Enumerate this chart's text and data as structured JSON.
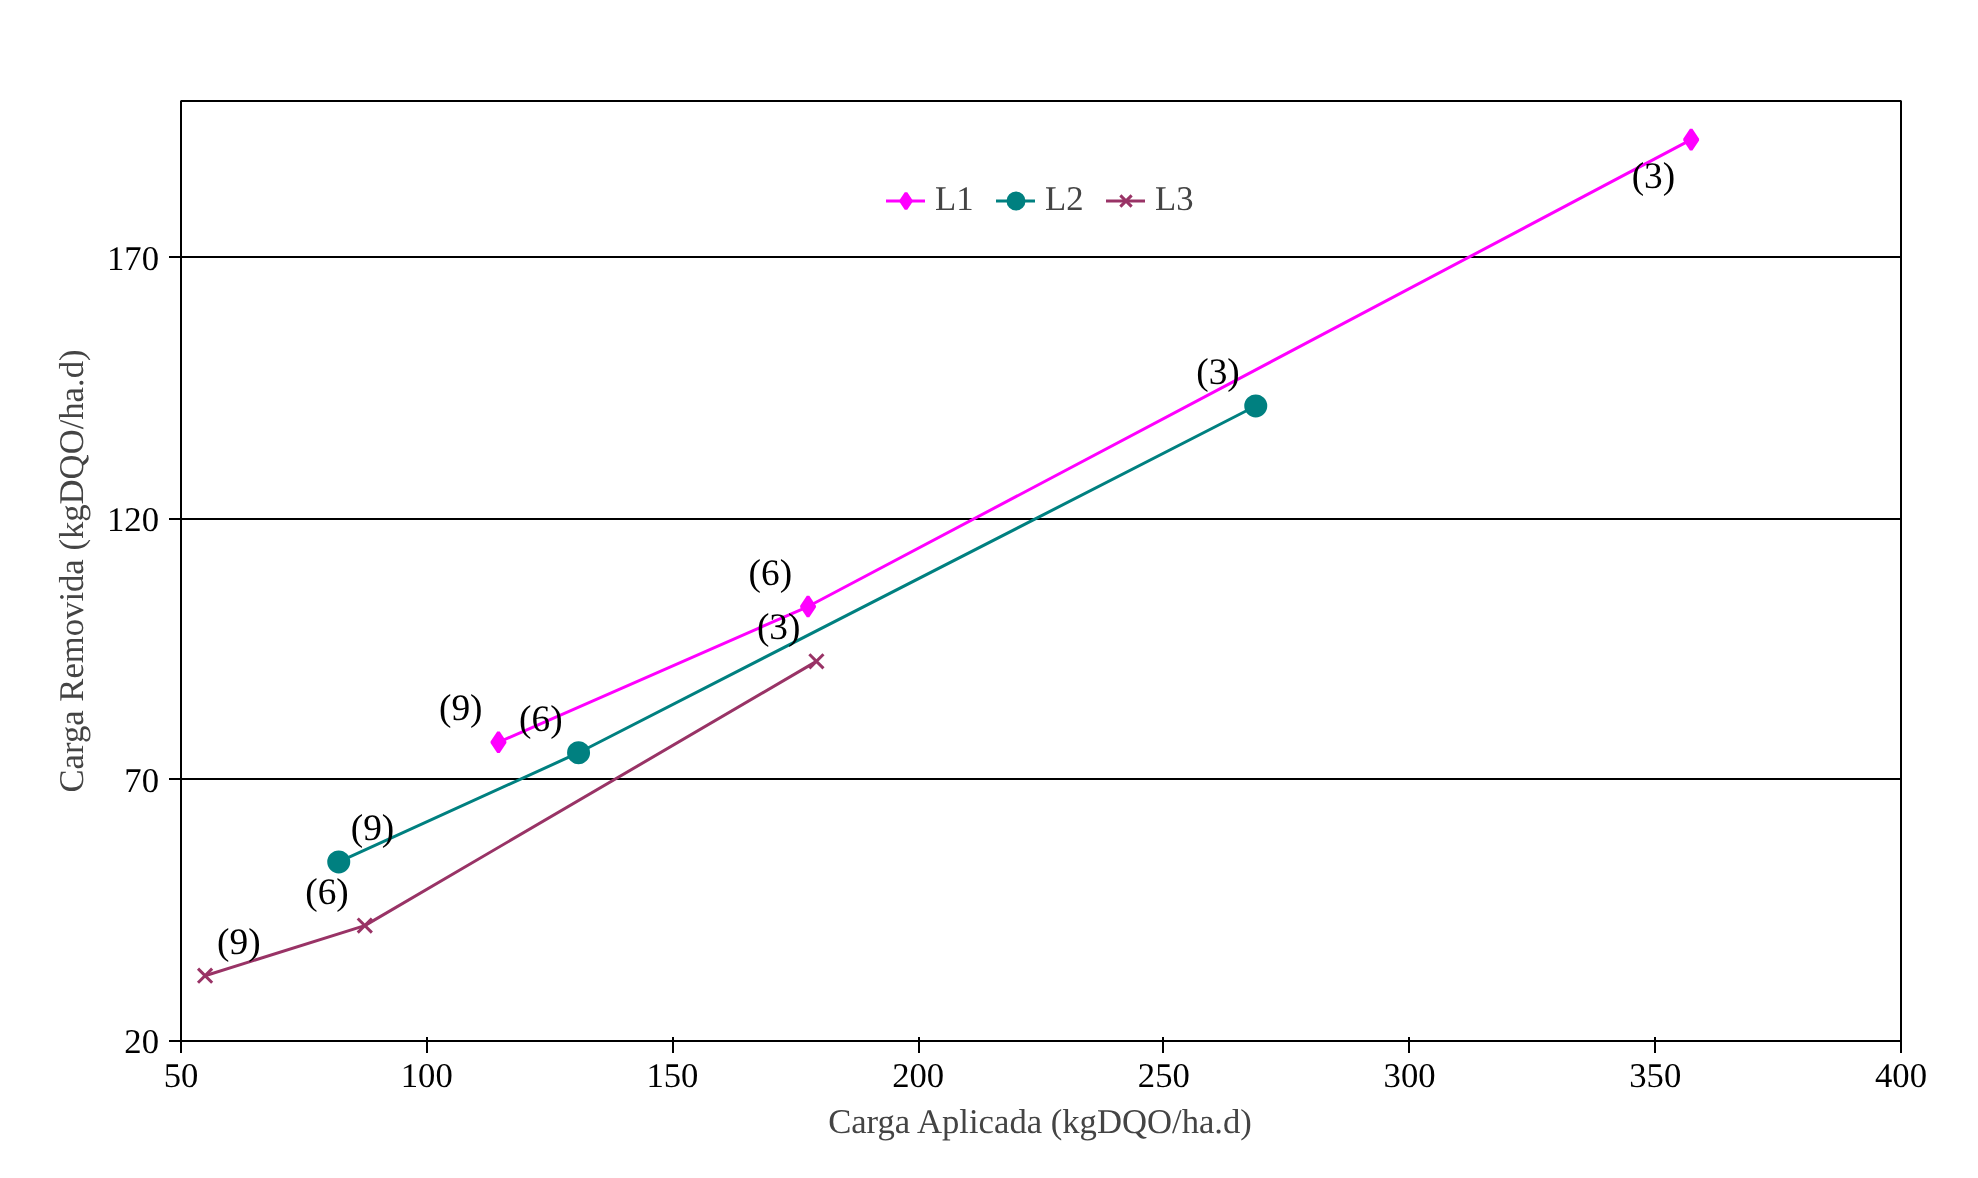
{
  "chart_data": {
    "type": "line",
    "xlabel": "Carga Aplicada (kgDQO/ha.d)",
    "ylabel": "Carga Removida (kgDQO/ha.d)",
    "xlim": [
      50,
      400
    ],
    "xticks": [
      50,
      100,
      150,
      200,
      250,
      300,
      350,
      400
    ],
    "ylim": [
      20,
      200
    ],
    "yticks": [
      20,
      70,
      120,
      170
    ],
    "grid": "y",
    "legend": "top",
    "line_style": "solid",
    "series": [
      {
        "name": "L1",
        "color": "#ff00ff",
        "marker": "diamond",
        "x": [
          114.6,
          177.6,
          357.3
        ],
        "values": [
          77.2,
          103.2,
          192.6
        ]
      },
      {
        "name": "L2",
        "color": "#008080",
        "marker": "circle",
        "x": [
          82.1,
          130.9,
          268.7
        ],
        "values": [
          54.3,
          75.2,
          141.6
        ]
      },
      {
        "name": "L3",
        "color": "#993366",
        "marker": "cross",
        "x": [
          54.9,
          87.4,
          179.3
        ],
        "values": [
          32.5,
          42.1,
          92.7
        ]
      }
    ],
    "annotations": [
      {
        "text": "(9)",
        "x": 114.6,
        "y": 77.2
      },
      {
        "text": "(6)",
        "x": 177.6,
        "y": 103.2
      },
      {
        "text": "(3)",
        "x": 357.3,
        "y": 192.6
      },
      {
        "text": "(9)",
        "x": 82.1,
        "y": 54.3
      },
      {
        "text": "(6)",
        "x": 130.9,
        "y": 75.2
      },
      {
        "text": "(3)",
        "x": 268.7,
        "y": 141.6
      },
      {
        "text": "(9)",
        "x": 54.9,
        "y": 32.5
      },
      {
        "text": "(6)",
        "x": 87.4,
        "y": 42.1
      },
      {
        "text": "(3)",
        "x": 179.3,
        "y": 92.7
      }
    ]
  }
}
